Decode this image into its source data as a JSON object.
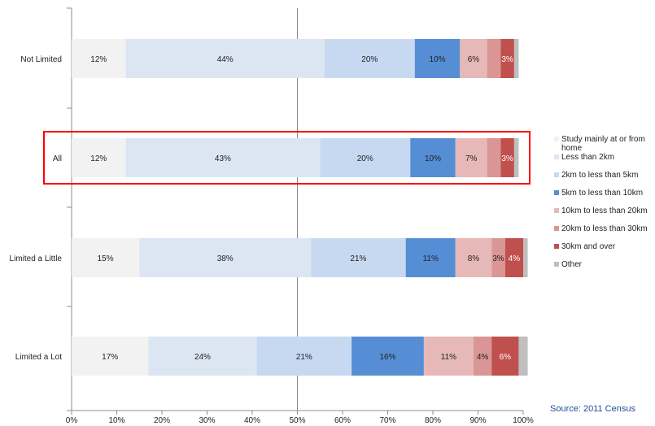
{
  "chart_data": {
    "type": "bar",
    "orientation": "horizontal",
    "stacked": true,
    "categories": [
      "Not Limited",
      "All",
      "Limited a Little",
      "Limited a Lot"
    ],
    "xlim": [
      0,
      100
    ],
    "x_ticks": [
      "0%",
      "10%",
      "20%",
      "30%",
      "40%",
      "50%",
      "60%",
      "70%",
      "80%",
      "90%",
      "100%"
    ],
    "grid": "vertical-at-50%",
    "legend_position": "right",
    "highlight": "All",
    "series": [
      {
        "name": "Study mainly at or from home",
        "color": "#f2f2f2",
        "values": [
          12,
          12,
          15,
          17
        ],
        "labels": [
          "12%",
          "12%",
          "15%",
          "17%"
        ]
      },
      {
        "name": "Less than 2km",
        "color": "#dce6f2",
        "values": [
          44,
          43,
          38,
          24
        ],
        "labels": [
          "44%",
          "43%",
          "38%",
          "24%"
        ]
      },
      {
        "name": "2km to less than 5km",
        "color": "#c6d9f0",
        "values": [
          20,
          20,
          21,
          21
        ],
        "labels": [
          "20%",
          "20%",
          "21%",
          "21%"
        ]
      },
      {
        "name": "5km to less than 10km",
        "color": "#558ed5",
        "values": [
          10,
          10,
          11,
          16
        ],
        "labels": [
          "10%",
          "10%",
          "11%",
          "16%"
        ]
      },
      {
        "name": "10km to less than 20km",
        "color": "#e6b9b8",
        "values": [
          6,
          7,
          8,
          11
        ],
        "labels": [
          "6%",
          "7%",
          "8%",
          "11%"
        ]
      },
      {
        "name": "20km to less than 30km",
        "color": "#d99694",
        "values": [
          3,
          3,
          3,
          4
        ],
        "labels": [
          "",
          "",
          "3%",
          "4%"
        ]
      },
      {
        "name": "30km and over",
        "color": "#c0504d",
        "values": [
          3,
          3,
          4,
          6
        ],
        "labels": [
          "3%",
          "3%",
          "4%",
          "6%"
        ]
      },
      {
        "name": "Other",
        "color": "#bfbfbf",
        "values": [
          1,
          1,
          1,
          2
        ],
        "labels": [
          "",
          "",
          "",
          ""
        ]
      }
    ]
  },
  "source": "Source: 2011 Census"
}
